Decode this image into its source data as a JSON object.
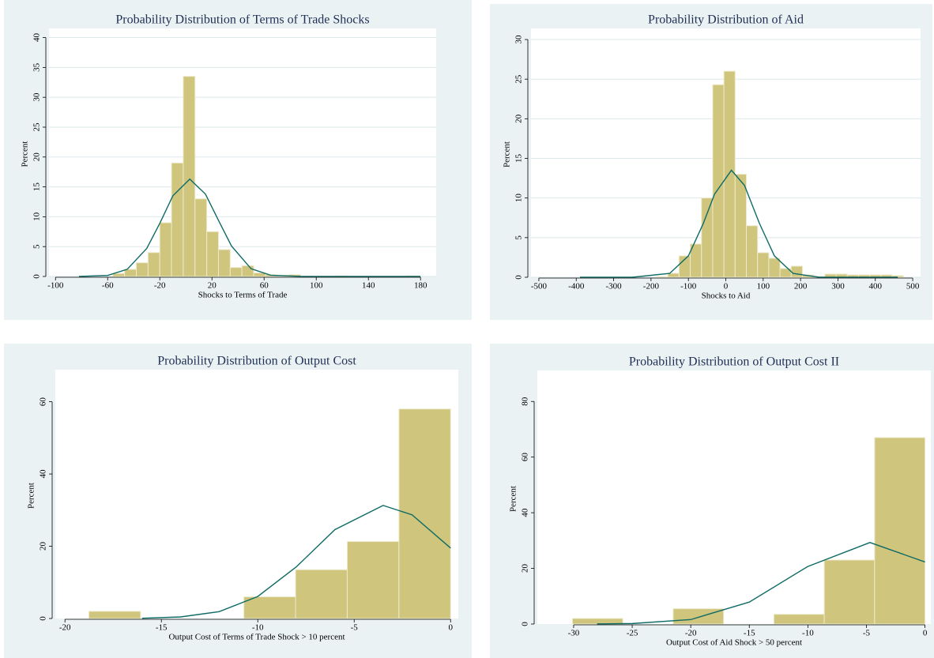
{
  "chart_data": [
    {
      "type": "histogram",
      "title": "Probability Distribution of Terms of Trade Shocks",
      "x_label": "Shocks to Terms of Trade",
      "y_label": "Percent",
      "bins": [
        -56,
        -47,
        -38,
        -29,
        -20,
        -11,
        -2,
        7,
        16,
        25,
        34,
        43,
        52,
        61,
        70,
        79,
        88,
        97,
        106,
        115,
        124,
        133,
        142,
        151,
        160,
        169,
        178
      ],
      "values": [
        0.5,
        1.2,
        2.3,
        4,
        9,
        19,
        33.5,
        13,
        7.5,
        4.5,
        1.5,
        1.8,
        0.6,
        0.3,
        0.2,
        0.3,
        0,
        0,
        0,
        0.1,
        0,
        0,
        0,
        0,
        0,
        0.1
      ],
      "color": "#cfc57c",
      "curve": {
        "color": "#0f6b66",
        "x": [
          -82,
          -60,
          -45,
          -30,
          -20,
          -10,
          3,
          15,
          25,
          35,
          50,
          65,
          90,
          120,
          180
        ],
        "values": [
          0,
          0.18,
          1.2,
          4.7,
          8.9,
          13.5,
          16.3,
          13.8,
          9.4,
          5.1,
          1.3,
          0.21,
          0,
          0,
          0
        ]
      },
      "xlim": [
        -105,
        192
      ],
      "xticks": [
        -100,
        -60,
        -20,
        20,
        60,
        100,
        140,
        180
      ],
      "ylim": [
        0,
        41
      ],
      "yticks": [
        0,
        5,
        10,
        15,
        20,
        25,
        30,
        35,
        40
      ],
      "grid": true
    },
    {
      "type": "histogram",
      "title": "Probability Distribution of Aid",
      "x_label": "Shocks to Aid",
      "y_label": "Percent",
      "bins": [
        -185,
        -155,
        -125,
        -95,
        -65,
        -35,
        -5,
        25,
        55,
        85,
        115,
        145,
        175,
        205,
        235,
        265,
        295,
        325,
        355,
        385,
        415,
        445,
        475
      ],
      "values": [
        0.1,
        0.5,
        2.7,
        4.2,
        10,
        24.3,
        26,
        13,
        6.5,
        3.1,
        2.4,
        1.1,
        1.4,
        0.3,
        0.1,
        0.4,
        0.4,
        0.3,
        0.3,
        0.3,
        0.3,
        0.2
      ],
      "color": "#cfc57c",
      "curve": {
        "color": "#0f6b66",
        "x": [
          -390,
          -250,
          -150,
          -100,
          -60,
          -30,
          15,
          50,
          90,
          130,
          180,
          250,
          350,
          460
        ],
        "values": [
          0,
          0,
          0.49,
          2.7,
          6.8,
          10.5,
          13.5,
          11.6,
          6.8,
          2.7,
          0.49,
          0,
          0,
          0
        ]
      },
      "xlim": [
        -521,
        521
      ],
      "xticks": [
        -500,
        -400,
        -300,
        -200,
        -100,
        0,
        100,
        200,
        300,
        400,
        500
      ],
      "ylim": [
        0,
        31
      ],
      "yticks": [
        0,
        5,
        10,
        15,
        20,
        25,
        30
      ],
      "grid": true
    },
    {
      "type": "histogram",
      "title": "Probability Distribution of Output Cost",
      "x_label": "Output Cost of Terms of Trade Shock > 10 percent",
      "y_label": "Percent",
      "bins": [
        -18.76,
        -16.08,
        -13.4,
        -10.72,
        -8.04,
        -5.36,
        -2.68,
        0
      ],
      "values": [
        2,
        0,
        0,
        6,
        13.5,
        21.3,
        58
      ],
      "color": "#cfc57c",
      "curve": {
        "color": "#0f6b66",
        "x": [
          -16,
          -14,
          -12,
          -10,
          -8,
          -6,
          -3.5,
          -2,
          0
        ],
        "values": [
          0.07,
          0.44,
          1.9,
          6.1,
          14.3,
          24.6,
          31.3,
          28.7,
          19.5
        ]
      },
      "xlim": [
        -20.5,
        0.4
      ],
      "xticks": [
        -20,
        -15,
        -10,
        -5,
        0
      ],
      "ylim": [
        0,
        68
      ],
      "yticks": [
        0,
        20,
        40,
        60
      ],
      "grid": false
    },
    {
      "type": "histogram",
      "title": "Probability Distribution of Output Cost II",
      "x_label": "Output Cost of Aid Shock > 50 percent",
      "y_label": "Percent",
      "bins": [
        -30.1,
        -25.8,
        -21.5,
        -17.2,
        -12.9,
        -8.6,
        -4.3,
        0
      ],
      "values": [
        2,
        0,
        5.5,
        0,
        3.5,
        23,
        67
      ],
      "color": "#cfc57c",
      "curve": {
        "color": "#0f6b66",
        "x": [
          -28,
          -25,
          -20,
          -15,
          -10,
          -4.7,
          0
        ],
        "values": [
          0.04,
          0.18,
          1.6,
          7.9,
          20.7,
          29.3,
          22.3
        ]
      },
      "xlim": [
        -33.1,
        0.5
      ],
      "xticks": [
        -30,
        -25,
        -20,
        -15,
        -10,
        -5,
        0
      ],
      "ylim": [
        0,
        90
      ],
      "yticks": [
        0,
        20,
        40,
        60,
        80
      ],
      "grid": false
    }
  ]
}
